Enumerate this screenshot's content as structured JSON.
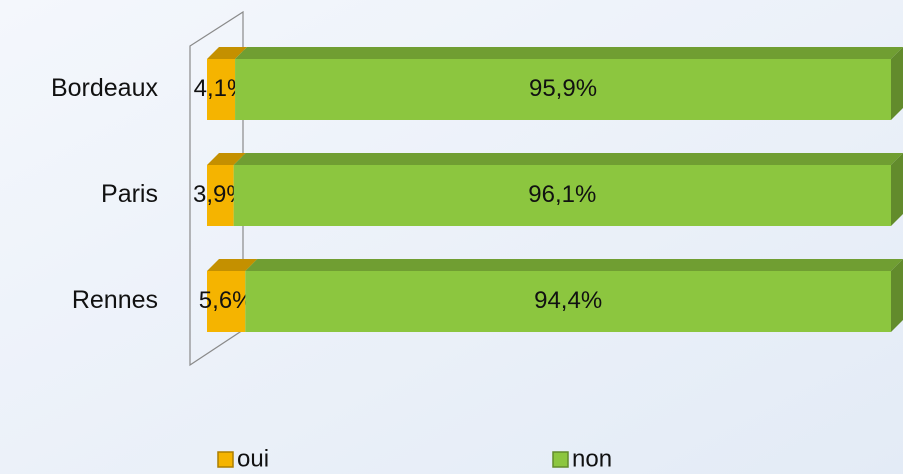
{
  "chart_data": {
    "type": "bar",
    "orientation": "horizontal",
    "stacked": true,
    "three_d": true,
    "categories": [
      "Bordeaux",
      "Paris",
      "Rennes"
    ],
    "series": [
      {
        "name": "oui",
        "color": "#f5b400",
        "values": [
          4.1,
          3.9,
          5.6
        ],
        "value_labels": [
          "4,1%",
          "3,9%",
          "5,6%"
        ]
      },
      {
        "name": "non",
        "color": "#8cc63f",
        "values": [
          95.9,
          96.1,
          94.4
        ],
        "value_labels": [
          "95,9%",
          "96,1%",
          "94,4%"
        ]
      }
    ],
    "legend": "bottom"
  }
}
